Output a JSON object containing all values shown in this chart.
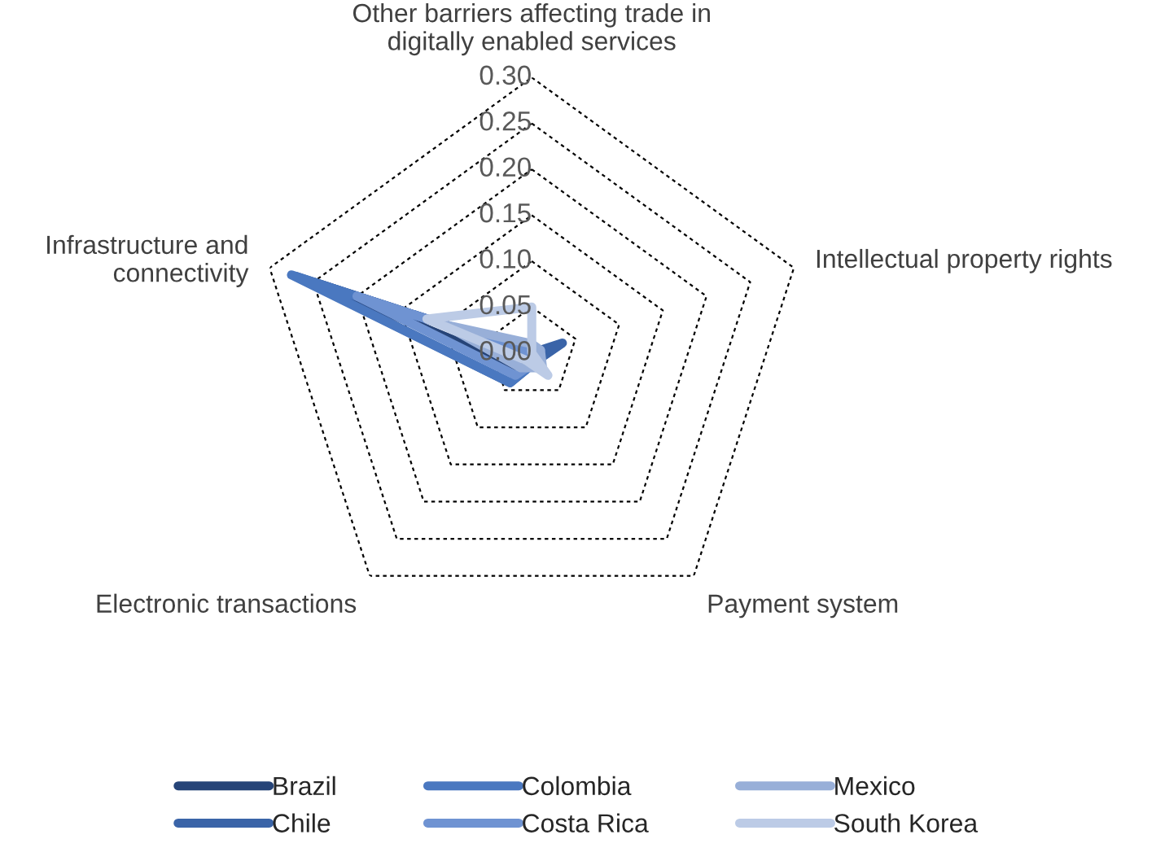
{
  "chart_data": {
    "type": "radar",
    "categories": [
      "Other barriers affecting trade in digitally enabled services",
      "Intellectual property rights",
      "Payment system",
      "Electronic transactions",
      "Infrastructure and connectivity"
    ],
    "ylim": [
      0,
      0.3
    ],
    "yticks": [
      {
        "value": 0,
        "label": "0.00"
      },
      {
        "value": 0.05,
        "label": "0.05"
      },
      {
        "value": 0.1,
        "label": "0.10"
      },
      {
        "value": 0.15,
        "label": "0.15"
      },
      {
        "value": 0.2,
        "label": "0.20"
      },
      {
        "value": 0.25,
        "label": "0.25"
      },
      {
        "value": 0.3,
        "label": "0.30"
      }
    ],
    "grid": true,
    "legend": "bottom",
    "marker": "none",
    "line_style": "solid",
    "series": [
      {
        "name": "Brazil",
        "color": "#264478",
        "values": [
          0,
          0.01,
          0.01,
          0.02,
          0.25
        ]
      },
      {
        "name": "Chile",
        "color": "#3a64a8",
        "values": [
          0,
          0.035,
          0.01,
          0.04,
          0.27
        ]
      },
      {
        "name": "Colombia",
        "color": "#4a78c0",
        "values": [
          0,
          0.01,
          0.01,
          0.04,
          0.275
        ]
      },
      {
        "name": "Costa Rica",
        "color": "#6f93d2",
        "values": [
          0,
          0.01,
          0.01,
          0.03,
          0.2
        ]
      },
      {
        "name": "Mexico",
        "color": "#98afd8",
        "values": [
          0.01,
          0.01,
          0.02,
          0.02,
          0.1
        ]
      },
      {
        "name": "South Korea",
        "color": "#bccbe6",
        "values": [
          0.05,
          0,
          0.03,
          0.01,
          0.12
        ]
      }
    ]
  }
}
